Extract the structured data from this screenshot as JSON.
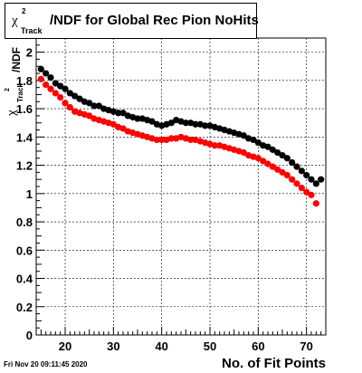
{
  "header": {
    "title_chi": "χ",
    "title_sup": "2",
    "title_sub": "Track",
    "title_rest": "/NDF for Global Rec Pion NoHits"
  },
  "footer": {
    "timestamp": "Fri Nov 20 09:11:45 2020"
  },
  "colors": {
    "series_black": "#000000",
    "series_red": "#ff0000",
    "grid": "#000000"
  },
  "chart_data": {
    "type": "scatter",
    "title": "χ²_Track/NDF for Global Rec Pion NoHits",
    "xlabel": "No. of Fit Points",
    "ylabel": "χ²_Track/NDF",
    "xlim": [
      14,
      74
    ],
    "ylim": [
      0,
      2.1
    ],
    "grid": true,
    "x_ticks": [
      "20",
      "30",
      "40",
      "50",
      "60",
      "70"
    ],
    "y_ticks": [
      "0",
      "0.2",
      "0.4",
      "0.6",
      "0.8",
      "1",
      "1.2",
      "1.4",
      "1.6",
      "1.8",
      "2"
    ],
    "series": [
      {
        "color": "#000000",
        "x": [
          15,
          16,
          17,
          18,
          19,
          20,
          21,
          22,
          23,
          24,
          25,
          26,
          27,
          28,
          29,
          30,
          31,
          32,
          33,
          34,
          35,
          36,
          37,
          38,
          39,
          40,
          41,
          42,
          43,
          44,
          45,
          46,
          47,
          48,
          49,
          50,
          51,
          52,
          53,
          54,
          55,
          56,
          57,
          58,
          59,
          60,
          61,
          62,
          63,
          64,
          65,
          66,
          67,
          68,
          69,
          70,
          71,
          72,
          73
        ],
        "values": [
          1.88,
          1.85,
          1.82,
          1.78,
          1.76,
          1.74,
          1.71,
          1.69,
          1.67,
          1.65,
          1.64,
          1.62,
          1.62,
          1.6,
          1.59,
          1.58,
          1.57,
          1.57,
          1.55,
          1.54,
          1.53,
          1.53,
          1.52,
          1.51,
          1.49,
          1.48,
          1.49,
          1.5,
          1.52,
          1.51,
          1.5,
          1.5,
          1.49,
          1.49,
          1.48,
          1.48,
          1.47,
          1.46,
          1.45,
          1.44,
          1.43,
          1.42,
          1.41,
          1.39,
          1.38,
          1.36,
          1.34,
          1.33,
          1.31,
          1.29,
          1.27,
          1.25,
          1.22,
          1.19,
          1.16,
          1.13,
          1.1,
          1.07,
          1.1
        ]
      },
      {
        "color": "#ff0000",
        "x": [
          15,
          16,
          17,
          18,
          19,
          20,
          21,
          22,
          23,
          24,
          25,
          26,
          27,
          28,
          29,
          30,
          31,
          32,
          33,
          34,
          35,
          36,
          37,
          38,
          39,
          40,
          41,
          42,
          43,
          44,
          45,
          46,
          47,
          48,
          49,
          50,
          51,
          52,
          53,
          54,
          55,
          56,
          57,
          58,
          59,
          60,
          61,
          62,
          63,
          64,
          65,
          66,
          67,
          68,
          69,
          70,
          71,
          72
        ],
        "values": [
          1.81,
          1.77,
          1.74,
          1.71,
          1.68,
          1.64,
          1.61,
          1.58,
          1.57,
          1.56,
          1.55,
          1.53,
          1.52,
          1.51,
          1.5,
          1.49,
          1.47,
          1.46,
          1.44,
          1.43,
          1.42,
          1.41,
          1.4,
          1.39,
          1.38,
          1.38,
          1.38,
          1.39,
          1.39,
          1.4,
          1.39,
          1.38,
          1.38,
          1.37,
          1.36,
          1.35,
          1.34,
          1.34,
          1.33,
          1.32,
          1.31,
          1.3,
          1.29,
          1.27,
          1.26,
          1.25,
          1.23,
          1.21,
          1.19,
          1.17,
          1.15,
          1.13,
          1.1,
          1.07,
          1.04,
          1.01,
          0.99,
          0.93
        ]
      }
    ]
  }
}
